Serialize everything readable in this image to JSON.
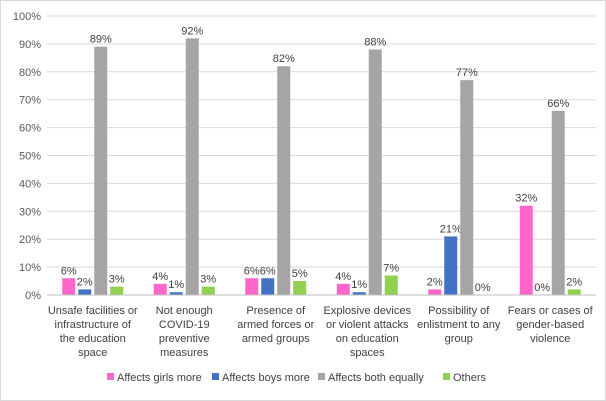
{
  "chart_data": {
    "type": "bar",
    "categories": [
      [
        "Unsafe facilities or",
        "infrastructure of",
        "the education",
        "space"
      ],
      [
        "Not enough",
        "COVID-19",
        "preventive",
        "measures"
      ],
      [
        "Presence of",
        "armed forces or",
        "armed groups"
      ],
      [
        "Explosive devices",
        "or violent attacks",
        "on education",
        "spaces"
      ],
      [
        "Possibility of",
        "enlistment to any",
        "group"
      ],
      [
        "Fears or cases of",
        "gender-based",
        "violence"
      ]
    ],
    "series": [
      {
        "name": "Affects girls more",
        "color": "#ff66cc",
        "values": [
          6,
          4,
          6,
          4,
          2,
          32
        ],
        "labels": [
          "6%",
          "4%",
          "6%",
          "4%",
          "2%",
          "32%"
        ]
      },
      {
        "name": "Affects boys more",
        "color": "#4472c4",
        "values": [
          2,
          1,
          6,
          1,
          21,
          0
        ],
        "labels": [
          "2%",
          "1%",
          "6%",
          "1%",
          "21%",
          "0%"
        ]
      },
      {
        "name": "Affects both equally",
        "color": "#a5a5a5",
        "values": [
          89,
          92,
          82,
          88,
          77,
          66
        ],
        "labels": [
          "89%",
          "92%",
          "82%",
          "88%",
          "77%",
          "66%"
        ]
      },
      {
        "name": "Others",
        "color": "#92d050",
        "values": [
          3,
          3,
          5,
          7,
          0,
          2
        ],
        "labels": [
          "3%",
          "3%",
          "5%",
          "7%",
          "0%",
          "2%"
        ]
      }
    ],
    "y_ticks": [
      "0%",
      "10%",
      "20%",
      "30%",
      "40%",
      "50%",
      "60%",
      "70%",
      "80%",
      "90%",
      "100%"
    ],
    "ylim": [
      0,
      100
    ],
    "grid": true,
    "legend_position": "bottom",
    "title": "",
    "xlabel": "",
    "ylabel": ""
  }
}
